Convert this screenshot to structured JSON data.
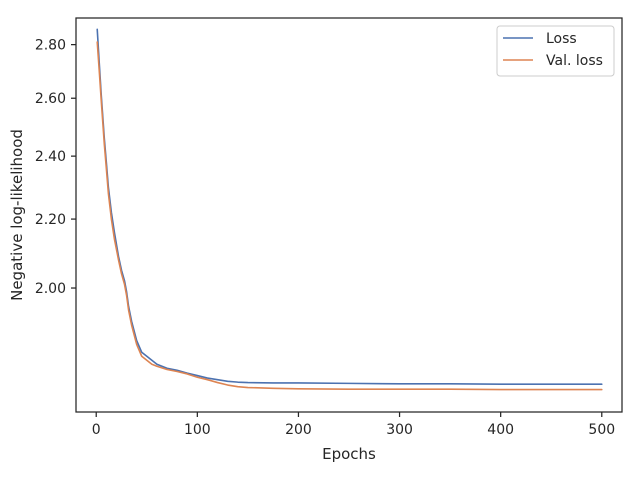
{
  "chart_data": {
    "type": "line",
    "xlabel": "Epochs",
    "ylabel": "Negative log-likelihood",
    "xlim": [
      -20,
      520
    ],
    "ylim": [
      1.685,
      2.905
    ],
    "scale_y": "log",
    "xticks": [
      0,
      100,
      200,
      300,
      400,
      500
    ],
    "xtick_labels": [
      "0",
      "100",
      "200",
      "300",
      "400",
      "500"
    ],
    "yticks": [
      2.0,
      2.2,
      2.4,
      2.6,
      2.8
    ],
    "ytick_labels": [
      "2.00",
      "2.20",
      "2.40",
      "2.60",
      "2.80"
    ],
    "grid": false,
    "legend": "top-right",
    "series": [
      {
        "name": "Loss",
        "color": "#4c72b0",
        "points": [
          [
            1,
            2.86
          ],
          [
            3,
            2.73
          ],
          [
            5,
            2.61
          ],
          [
            8,
            2.46
          ],
          [
            10,
            2.38
          ],
          [
            12,
            2.3
          ],
          [
            15,
            2.22
          ],
          [
            18,
            2.16
          ],
          [
            22,
            2.09
          ],
          [
            25,
            2.05
          ],
          [
            28,
            2.02
          ],
          [
            30,
            1.99
          ],
          [
            32,
            1.95
          ],
          [
            35,
            1.91
          ],
          [
            40,
            1.86
          ],
          [
            45,
            1.83
          ],
          [
            50,
            1.82
          ],
          [
            55,
            1.81
          ],
          [
            60,
            1.8
          ],
          [
            70,
            1.79
          ],
          [
            80,
            1.785
          ],
          [
            90,
            1.778
          ],
          [
            100,
            1.772
          ],
          [
            110,
            1.766
          ],
          [
            120,
            1.762
          ],
          [
            130,
            1.758
          ],
          [
            140,
            1.756
          ],
          [
            150,
            1.755
          ],
          [
            175,
            1.754
          ],
          [
            200,
            1.754
          ],
          [
            250,
            1.753
          ],
          [
            300,
            1.752
          ],
          [
            350,
            1.752
          ],
          [
            400,
            1.751
          ],
          [
            450,
            1.751
          ],
          [
            500,
            1.751
          ]
        ]
      },
      {
        "name": "Val. loss",
        "color": "#dd8452",
        "points": [
          [
            1,
            2.81
          ],
          [
            3,
            2.7
          ],
          [
            5,
            2.59
          ],
          [
            8,
            2.44
          ],
          [
            10,
            2.36
          ],
          [
            12,
            2.28
          ],
          [
            15,
            2.2
          ],
          [
            18,
            2.14
          ],
          [
            22,
            2.08
          ],
          [
            25,
            2.04
          ],
          [
            28,
            2.01
          ],
          [
            30,
            1.98
          ],
          [
            32,
            1.94
          ],
          [
            35,
            1.9
          ],
          [
            40,
            1.85
          ],
          [
            45,
            1.82
          ],
          [
            50,
            1.81
          ],
          [
            55,
            1.8
          ],
          [
            60,
            1.795
          ],
          [
            70,
            1.787
          ],
          [
            80,
            1.782
          ],
          [
            90,
            1.776
          ],
          [
            100,
            1.768
          ],
          [
            110,
            1.762
          ],
          [
            120,
            1.755
          ],
          [
            130,
            1.749
          ],
          [
            140,
            1.745
          ],
          [
            150,
            1.743
          ],
          [
            175,
            1.741
          ],
          [
            200,
            1.74
          ],
          [
            250,
            1.739
          ],
          [
            300,
            1.739
          ],
          [
            350,
            1.739
          ],
          [
            400,
            1.738
          ],
          [
            450,
            1.738
          ],
          [
            500,
            1.738
          ]
        ]
      }
    ]
  }
}
